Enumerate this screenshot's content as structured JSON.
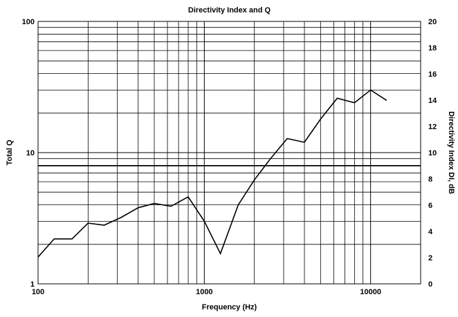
{
  "chart_data": {
    "type": "line",
    "title": "Directivity Index and Q",
    "xlabel": "Frequency (Hz)",
    "ylabel": "Total Q",
    "y2label": "Directivity Index DI, dB",
    "xscale": "log",
    "yscale": "log",
    "xlim": [
      100,
      20000
    ],
    "ylim": [
      1,
      100
    ],
    "y2lim": [
      0,
      20
    ],
    "grid": true,
    "x_ticks": [
      "100",
      "1000",
      "10000"
    ],
    "y_ticks": [
      "1",
      "10",
      "100"
    ],
    "y2_ticks": [
      "0",
      "2",
      "4",
      "6",
      "8",
      "10",
      "12",
      "14",
      "16",
      "18",
      "20"
    ],
    "series": [
      {
        "axis": "left",
        "x": [
          100,
          125,
          160,
          200,
          250,
          315,
          400,
          500,
          630,
          800,
          1000,
          1250,
          1600,
          2000,
          2500,
          3150,
          4000,
          5000,
          6300,
          8000,
          10000,
          12500
        ],
        "values": [
          1.6,
          2.2,
          2.2,
          2.9,
          2.8,
          3.2,
          3.8,
          4.1,
          3.9,
          4.6,
          3.0,
          1.7,
          4.0,
          6.2,
          9.0,
          12.8,
          12.0,
          18.0,
          26.0,
          24.0,
          30.0,
          25.0
        ]
      }
    ],
    "reference_line": {
      "y2": 9,
      "color": "#000000"
    }
  }
}
